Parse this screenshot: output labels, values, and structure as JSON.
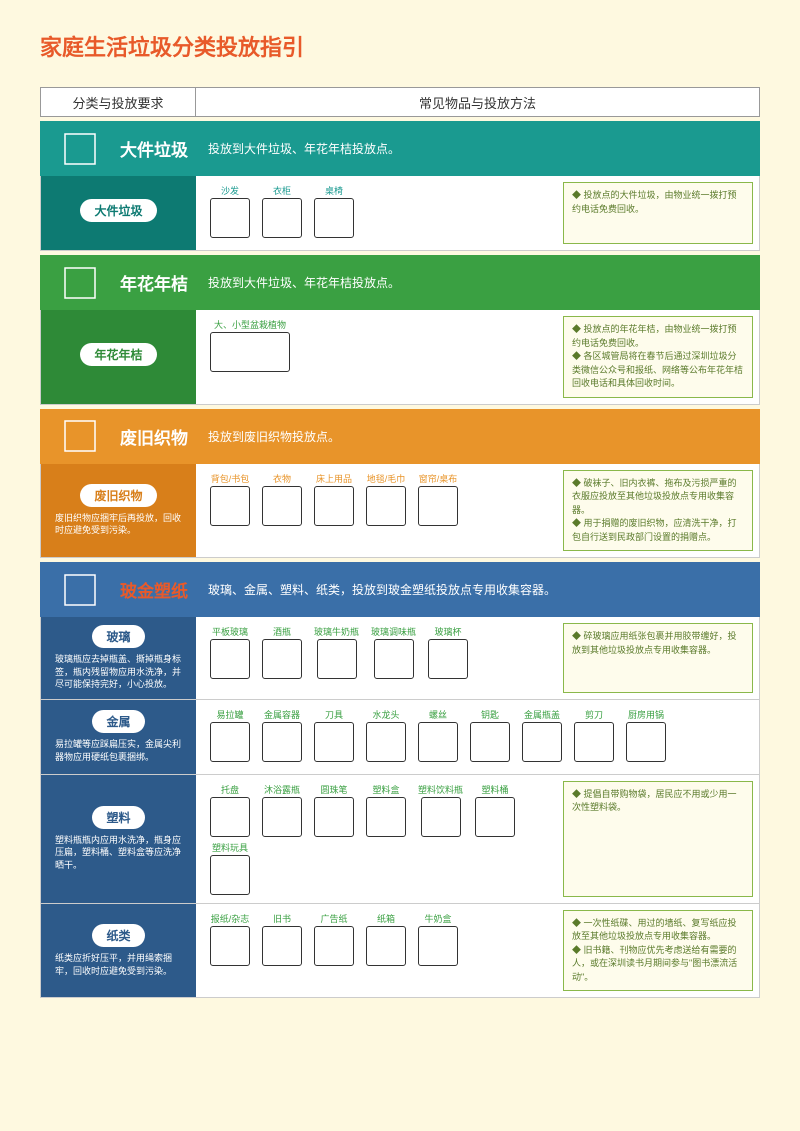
{
  "title": "家庭生活垃圾分类投放指引",
  "header": {
    "left": "分类与投放要求",
    "right": "常见物品与投放方法"
  },
  "sections": [
    {
      "key": "big",
      "banner_color": "#1a9a90",
      "name": "大件垃圾",
      "desc": "投放到大件垃圾、年花年桔投放点。",
      "tag": "大件垃圾",
      "hint": "",
      "label_class": "lbl-teal",
      "items": [
        {
          "label": "沙发"
        },
        {
          "label": "衣柜"
        },
        {
          "label": "桌椅"
        }
      ],
      "tips": [
        "投放点的大件垃圾，由物业统一拨打预约电话免费回收。"
      ]
    },
    {
      "key": "flower",
      "banner_color": "#3aa042",
      "name": "年花年桔",
      "desc": "投放到大件垃圾、年花年桔投放点。",
      "tag": "年花年桔",
      "hint": "",
      "label_class": "lbl-green",
      "items": [
        {
          "label": "大、小型盆栽植物",
          "wide": true
        }
      ],
      "tips": [
        "投放点的年花年桔，由物业统一拨打预约电话免费回收。",
        "各区城管局将在春节后通过深圳垃圾分类微信公众号和报纸、网络等公布年花年桔回收电话和具体回收时间。"
      ]
    },
    {
      "key": "textile",
      "banner_color": "#e8942a",
      "name": "废旧织物",
      "desc": "投放到废旧织物投放点。",
      "tag": "废旧织物",
      "hint": "废旧织物应捆牢后再投放，回收时应避免受到污染。",
      "label_class": "lbl-orange",
      "items": [
        {
          "label": "背包/书包"
        },
        {
          "label": "衣物"
        },
        {
          "label": "床上用品"
        },
        {
          "label": "地毯/毛巾"
        },
        {
          "label": "窗帘/桌布"
        }
      ],
      "tips": [
        "破袜子、旧内衣裤、拖布及污损严重的衣服应投放至其他垃圾投放点专用收集容器。",
        "用于捐赠的废旧织物，应清洗干净，打包自行送到民政部门设置的捐赠点。"
      ]
    },
    {
      "key": "recycle",
      "banner_color": "#3a6fa8",
      "name": "玻金塑纸",
      "desc": "玻璃、金属、塑料、纸类，投放到玻金塑纸投放点专用收集容器。",
      "rows": [
        {
          "tag": "玻璃",
          "hint": "玻璃瓶应去掉瓶盖、撕掉瓶身标签，瓶内残留物应用水洗净，并尽可能保持完好，小心投放。",
          "label_class": "lbl-green",
          "items": [
            {
              "label": "平板玻璃"
            },
            {
              "label": "酒瓶"
            },
            {
              "label": "玻璃牛奶瓶"
            },
            {
              "label": "玻璃调味瓶"
            },
            {
              "label": "玻璃杯"
            }
          ],
          "tips": [
            "碎玻璃应用纸张包裹并用胶带缠好，投放到其他垃圾投放点专用收集容器。"
          ]
        },
        {
          "tag": "金属",
          "hint": "易拉罐等应踩扁压实，金属尖利器物应用硬纸包裹捆绑。",
          "label_class": "lbl-green",
          "items": [
            {
              "label": "易拉罐"
            },
            {
              "label": "金属容器"
            },
            {
              "label": "刀具"
            },
            {
              "label": "水龙头"
            },
            {
              "label": "螺丝"
            },
            {
              "label": "钥匙"
            },
            {
              "label": "金属瓶盖"
            },
            {
              "label": "剪刀"
            },
            {
              "label": "厨房用锅"
            }
          ],
          "tips": null
        },
        {
          "tag": "塑料",
          "hint": "塑料瓶瓶内应用水洗净，瓶身应压扁，塑料桶、塑料盒等应洗净晒干。",
          "label_class": "lbl-green",
          "items": [
            {
              "label": "托盘"
            },
            {
              "label": "沐浴露瓶"
            },
            {
              "label": "圆珠笔"
            },
            {
              "label": "塑料盒"
            },
            {
              "label": "塑料饮料瓶"
            },
            {
              "label": "塑料桶"
            },
            {
              "label": "塑料玩具"
            }
          ],
          "tips": [
            "提倡自带购物袋，居民应不用或少用一次性塑料袋。"
          ]
        },
        {
          "tag": "纸类",
          "hint": "纸类应折好压平，并用绳索捆牢，回收时应避免受到污染。",
          "label_class": "lbl-green",
          "items": [
            {
              "label": "报纸/杂志"
            },
            {
              "label": "旧书"
            },
            {
              "label": "广告纸"
            },
            {
              "label": "纸箱"
            },
            {
              "label": "牛奶盒"
            }
          ],
          "tips": [
            "一次性纸碟、用过的墙纸、复写纸应投放至其他垃圾投放点专用收集容器。",
            "旧书籍、刊物应优先考虑送给有需要的人，或在深圳读书月期间参与\"图书漂流活动\"。"
          ]
        }
      ]
    }
  ]
}
